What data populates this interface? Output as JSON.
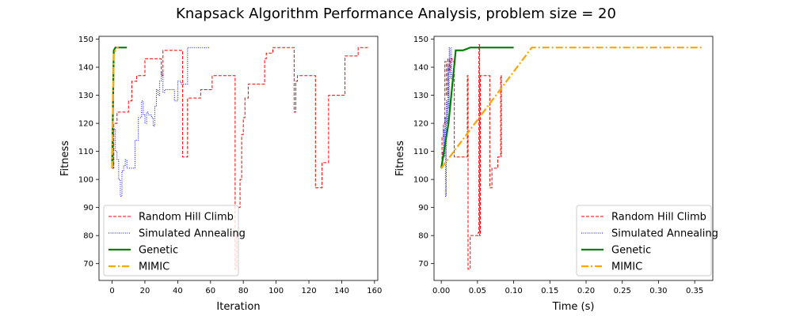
{
  "figure": {
    "title": "Knapsack Algorithm Performance Analysis, problem size = 20"
  },
  "styles": {
    "Random Hill Climb": {
      "color": "#ff0000",
      "width": 1,
      "dash": "4,2"
    },
    "Simulated Annealing": {
      "color": "#0000ff",
      "width": 1,
      "dash": "1,1.6"
    },
    "Genetic": {
      "color": "#008000",
      "width": 2.2,
      "dash": ""
    },
    "MIMIC": {
      "color": "#ffa500",
      "width": 2.2,
      "dash": "9,3,2,3"
    }
  },
  "chart_data": [
    {
      "type": "line",
      "xlabel": "Iteration",
      "ylabel": "Fitness",
      "xlim": [
        -8,
        162
      ],
      "ylim": [
        64,
        151
      ],
      "xticks": [
        0,
        20,
        40,
        60,
        80,
        100,
        120,
        140,
        160
      ],
      "yticks": [
        70,
        80,
        90,
        100,
        110,
        120,
        130,
        140,
        150
      ],
      "legend": "lower-left",
      "series": [
        {
          "name": "Random Hill Climb",
          "step": true,
          "x": [
            0,
            1,
            3,
            10,
            12,
            15,
            19,
            20,
            30,
            31,
            43,
            44,
            46,
            50,
            54,
            60,
            61,
            70,
            75,
            76,
            77,
            78,
            79,
            80,
            81,
            83,
            92,
            93,
            94,
            97,
            98,
            100,
            103,
            111,
            112,
            113,
            119,
            120,
            124,
            127,
            128,
            131,
            132,
            136,
            137,
            142,
            144,
            150,
            156
          ],
          "y": [
            104,
            120,
            124,
            128,
            135,
            137,
            137,
            143,
            137,
            146,
            108,
            108,
            129,
            129,
            132,
            132,
            137,
            137,
            68,
            80,
            90,
            100,
            116,
            122,
            129,
            134,
            134,
            143,
            145,
            145,
            147,
            147,
            147,
            124,
            135,
            137,
            137,
            137,
            97,
            97,
            106,
            106,
            130,
            130,
            130,
            144,
            144,
            147,
            147
          ]
        },
        {
          "name": "Simulated Annealing",
          "step": true,
          "x": [
            0,
            1,
            2,
            3,
            4,
            5,
            6,
            7,
            8,
            9,
            10,
            12,
            14,
            16,
            18,
            19,
            20,
            21,
            22,
            23,
            24,
            25,
            26,
            27,
            28,
            29,
            30,
            31,
            32,
            33,
            34,
            36,
            38,
            40,
            42,
            44,
            46,
            48,
            50,
            52,
            54,
            56,
            60
          ],
          "y": [
            104,
            118,
            110,
            107,
            100,
            94,
            103,
            105,
            107,
            104,
            104,
            104,
            114,
            122,
            128,
            123,
            120,
            124,
            123,
            123,
            122,
            119,
            126,
            132,
            130,
            135,
            138,
            131,
            132,
            132,
            132,
            132,
            128,
            135,
            134,
            134,
            147,
            147,
            147,
            147,
            147,
            147,
            147
          ]
        },
        {
          "name": "Genetic",
          "step": false,
          "x": [
            0,
            1,
            2,
            3,
            4,
            5,
            6,
            7,
            8,
            9
          ],
          "y": [
            104,
            146,
            147,
            147,
            147,
            147,
            147,
            147,
            147,
            147
          ]
        },
        {
          "name": "MIMIC",
          "step": false,
          "x": [
            0,
            1,
            2,
            3,
            4
          ],
          "y": [
            104,
            145,
            146,
            147,
            147
          ]
        }
      ]
    },
    {
      "type": "line",
      "xlabel": "Time (s)",
      "ylabel": "Fitness",
      "xlim": [
        -0.01,
        0.375
      ],
      "ylim": [
        64,
        151
      ],
      "xticks": [
        0.0,
        0.05,
        0.1,
        0.15,
        0.2,
        0.25,
        0.3,
        0.35
      ],
      "xtick_labels": [
        "0.00",
        "0.05",
        "0.10",
        "0.15",
        "0.20",
        "0.25",
        "0.30",
        "0.35"
      ],
      "yticks": [
        70,
        80,
        90,
        100,
        110,
        120,
        130,
        140,
        150
      ],
      "legend": "lower-right",
      "series": [
        {
          "name": "Random Hill Climb",
          "step": true,
          "x": [
            0.0,
            0.001,
            0.003,
            0.005,
            0.007,
            0.009,
            0.011,
            0.013,
            0.015,
            0.018,
            0.021,
            0.024,
            0.027,
            0.03,
            0.033,
            0.036,
            0.037,
            0.038,
            0.04,
            0.042,
            0.045,
            0.048,
            0.051,
            0.052,
            0.053,
            0.054,
            0.055,
            0.058,
            0.061,
            0.064,
            0.067,
            0.068,
            0.07,
            0.072,
            0.075,
            0.078,
            0.08,
            0.082,
            0.083
          ],
          "y": [
            104,
            115,
            120,
            142,
            130,
            143,
            139,
            143,
            142,
            108,
            108,
            108,
            108,
            108,
            108,
            137,
            68,
            68,
            80,
            80,
            80,
            80,
            81,
            148,
            80,
            137,
            137,
            137,
            137,
            137,
            97,
            97,
            104,
            104,
            104,
            108,
            108,
            137,
            108
          ]
        },
        {
          "name": "Simulated Annealing",
          "step": true,
          "x": [
            0.0,
            0.002,
            0.003,
            0.004,
            0.005,
            0.006,
            0.007,
            0.008,
            0.009,
            0.01,
            0.011,
            0.012,
            0.013,
            0.014
          ],
          "y": [
            104,
            110,
            118,
            108,
            122,
            94,
            128,
            120,
            140,
            125,
            147,
            138,
            136,
            147
          ]
        },
        {
          "name": "Genetic",
          "step": false,
          "x": [
            0.0,
            0.01,
            0.02,
            0.03,
            0.04,
            0.05,
            0.06,
            0.07,
            0.08,
            0.09,
            0.1
          ],
          "y": [
            104,
            120,
            146,
            146,
            147,
            147,
            147,
            147,
            147,
            147,
            147
          ]
        },
        {
          "name": "MIMIC",
          "step": false,
          "x": [
            0.0,
            0.125,
            0.25,
            0.36
          ],
          "y": [
            104,
            147,
            147,
            147
          ]
        }
      ]
    }
  ]
}
